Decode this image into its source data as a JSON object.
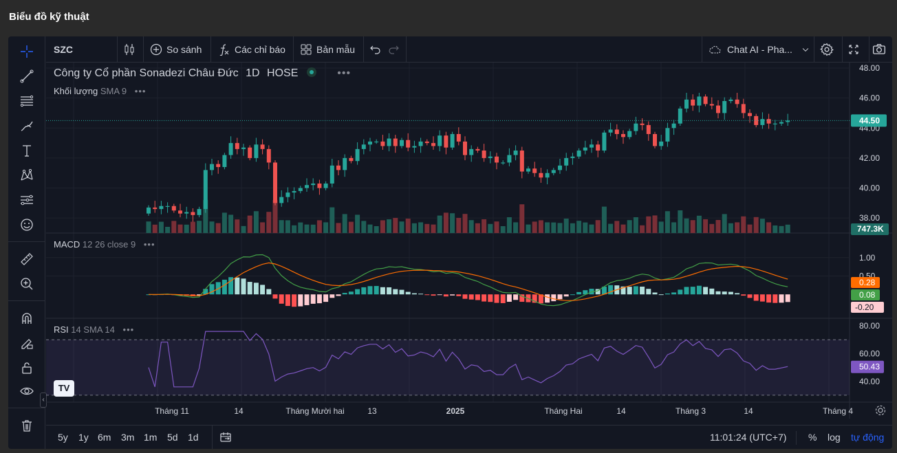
{
  "page": {
    "title": "Biểu đồ kỹ thuật"
  },
  "toolbar": {
    "symbol": "SZC",
    "compare_label": "So sánh",
    "indicators_label": "Các chỉ báo",
    "templates_label": "Bản mẫu",
    "chat_ai_label": "Chat AI - Pha..."
  },
  "legend": {
    "company": "Công ty Cổ phần Sonadezi Châu Đức",
    "interval": "1D",
    "exchange": "HOSE",
    "volume_name": "Khối lượng",
    "volume_params": "SMA 9",
    "macd_name": "MACD",
    "macd_params": "12 26 close 9",
    "rsi_name": "RSI",
    "rsi_params": "14 SMA 14",
    "more": "•••"
  },
  "footer": {
    "ranges": [
      "5y",
      "1y",
      "6m",
      "3m",
      "1m",
      "5d",
      "1d"
    ],
    "time": "11:01:24 (UTC+7)",
    "percent": "%",
    "log": "log",
    "auto": "tự động"
  },
  "colors": {
    "up": "#26a69a",
    "down": "#ef5350",
    "macd_line": "#43a047",
    "signal_line": "#ff6d00",
    "rsi_line": "#7e57c2",
    "last_price": "#26a69a"
  },
  "chart_data": [
    {
      "type": "candlestick",
      "title": "Công ty Cổ phần Sonadezi Châu Đức 1D HOSE",
      "ylim": [
        37.0,
        48.0
      ],
      "y_ticks": [
        "48.00",
        "46.00",
        "44.00",
        "42.00",
        "40.00",
        "38.00"
      ],
      "last_price": "44.50",
      "volume_last": "747.3K",
      "x_ticks": [
        "Tháng 11",
        "14",
        "Tháng Mười hai",
        "13",
        "2025",
        "Tháng Hai",
        "14",
        "Tháng 3",
        "14",
        "Tháng 4"
      ],
      "open": [
        38.3,
        38.7,
        38.6,
        38.8,
        38.8,
        38.5,
        38.3,
        38.4,
        38.2,
        38.6,
        41.2,
        41.6,
        41.4,
        42.2,
        43.0,
        42.6,
        42.7,
        42.0,
        42.9,
        42.6,
        41.7,
        39.0,
        39.4,
        39.7,
        39.8,
        40.0,
        40.2,
        40.3,
        40.0,
        40.3,
        41.5,
        41.2,
        42.0,
        41.8,
        42.6,
        42.9,
        43.1,
        43.1,
        42.8,
        43.3,
        42.8,
        43.2,
        42.7,
        42.8,
        43.1,
        43.0,
        42.8,
        43.5,
        42.7,
        43.6,
        43.1,
        42.2,
        42.6,
        42.5,
        42.0,
        42.1,
        41.7,
        41.7,
        42.2,
        42.5,
        41.1,
        41.3,
        41.0,
        40.7,
        41.0,
        41.2,
        41.5,
        42.0,
        42.1,
        42.5,
        42.7,
        42.9,
        42.5,
        43.7,
        43.9,
        43.6,
        43.4,
        43.8,
        44.3,
        44.2,
        43.6,
        42.8,
        43.1,
        44.0,
        44.3,
        45.3,
        45.9,
        45.5,
        46.1,
        45.6,
        45.5,
        45.0,
        45.8,
        45.9,
        45.6,
        45.0,
        44.8,
        44.2,
        44.6,
        44.3,
        44.3,
        44.4
      ],
      "close": [
        38.7,
        38.6,
        38.8,
        38.8,
        38.5,
        38.3,
        38.4,
        38.2,
        38.6,
        41.2,
        41.6,
        41.4,
        42.2,
        43.0,
        42.6,
        42.7,
        42.0,
        42.9,
        42.6,
        41.7,
        39.0,
        39.4,
        39.7,
        39.8,
        40.0,
        40.2,
        40.3,
        40.0,
        40.3,
        41.5,
        41.2,
        42.0,
        41.8,
        42.6,
        42.9,
        43.1,
        43.1,
        42.8,
        43.3,
        42.8,
        43.2,
        42.7,
        42.8,
        43.1,
        43.0,
        42.8,
        43.5,
        42.7,
        43.6,
        43.1,
        42.2,
        42.6,
        42.5,
        42.0,
        42.1,
        41.7,
        41.7,
        42.2,
        42.5,
        41.1,
        41.3,
        41.0,
        40.7,
        41.0,
        41.2,
        41.5,
        42.0,
        42.1,
        42.5,
        42.7,
        42.9,
        42.5,
        43.7,
        43.9,
        43.6,
        43.4,
        43.8,
        44.3,
        44.2,
        43.6,
        42.8,
        43.1,
        44.0,
        44.3,
        45.3,
        45.9,
        45.5,
        46.1,
        45.6,
        45.5,
        45.0,
        45.8,
        45.9,
        45.6,
        45.0,
        44.8,
        44.2,
        44.6,
        44.3,
        44.3,
        44.4,
        44.5
      ]
    },
    {
      "type": "line",
      "title": "MACD 12 26 close 9",
      "ylim": [
        -0.5,
        1.5
      ],
      "y_ticks": [
        "1.00",
        "0.50"
      ],
      "labels": {
        "signal": "0.28",
        "macd": "0.08",
        "histogram": "-0.20"
      }
    },
    {
      "type": "line",
      "title": "RSI 14 SMA 14",
      "ylim": [
        25,
        85
      ],
      "y_ticks": [
        "80.00",
        "60.00",
        "40.00"
      ],
      "bands": [
        70,
        30
      ],
      "last_value": "50.43"
    }
  ]
}
